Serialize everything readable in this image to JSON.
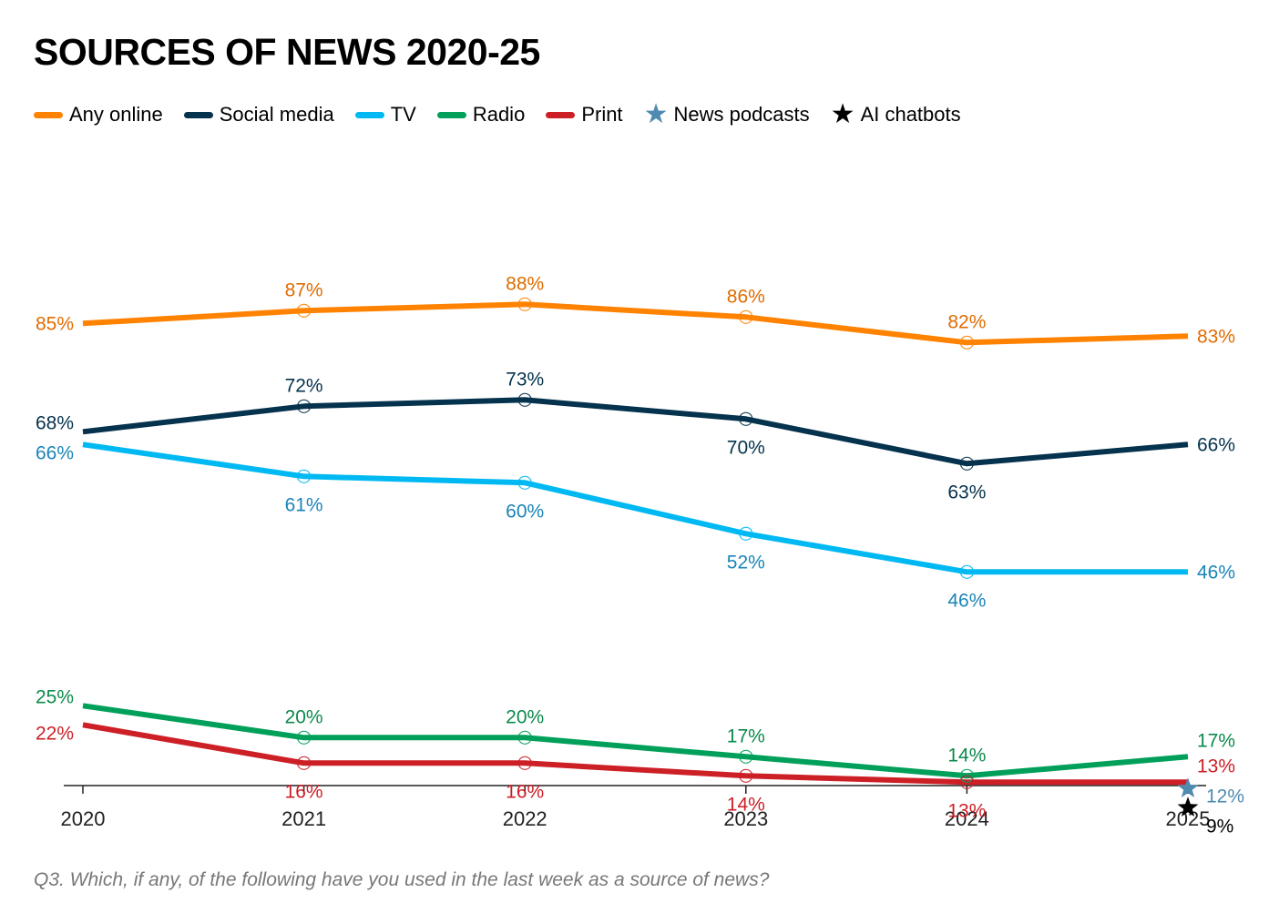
{
  "chart_data": {
    "type": "line",
    "title": "SOURCES OF NEWS 2020-25",
    "x": [
      "2020",
      "2021",
      "2022",
      "2023",
      "2024",
      "2025"
    ],
    "ylim": [
      0,
      100
    ],
    "grid": false,
    "legend_position": "top-left",
    "series": [
      {
        "name": "Any online",
        "key": "any_online",
        "color": "#ff8200",
        "label_color": "#e06c00",
        "values": [
          85,
          87,
          88,
          86,
          82,
          83
        ],
        "labels": [
          "85%",
          "87%",
          "88%",
          "86%",
          "82%",
          "83%"
        ]
      },
      {
        "name": "Social media",
        "key": "social_media",
        "color": "#05324d",
        "label_color": "#05324d",
        "values": [
          68,
          72,
          73,
          70,
          63,
          66
        ],
        "labels": [
          "68%",
          "72%",
          "73%",
          "70%",
          "63%",
          "66%"
        ]
      },
      {
        "name": "TV",
        "key": "tv",
        "color": "#00b9f2",
        "label_color": "#1b84b8",
        "values": [
          66,
          61,
          60,
          52,
          46,
          46
        ],
        "labels": [
          "66%",
          "61%",
          "60%",
          "52%",
          "46%",
          "46%"
        ]
      },
      {
        "name": "Radio",
        "key": "radio",
        "color": "#00a05a",
        "label_color": "#0b8a4b",
        "values": [
          25,
          20,
          20,
          17,
          14,
          17
        ],
        "labels": [
          "25%",
          "20%",
          "20%",
          "17%",
          "14%",
          "17%"
        ]
      },
      {
        "name": "Print",
        "key": "print",
        "color": "#cc1f26",
        "label_color": "#cc1f26",
        "values": [
          22,
          16,
          16,
          14,
          13,
          13
        ],
        "labels": [
          "22%",
          "16%",
          "16%",
          "14%",
          "13%",
          "13%"
        ]
      }
    ],
    "point_series": [
      {
        "name": "News podcasts",
        "key": "news_podcasts",
        "color": "#4f8bb0",
        "label_color": "#4f8bb0",
        "x": "2025",
        "value": 12,
        "label": "12%"
      },
      {
        "name": "AI chatbots",
        "key": "ai_chatbots",
        "color": "#000000",
        "label_color": "#000000",
        "x": "2025",
        "value": 9,
        "label": "9%"
      }
    ]
  },
  "legend": {
    "items": [
      {
        "label": "Any online",
        "marker": "line",
        "color": "#ff8200"
      },
      {
        "label": "Social media",
        "marker": "line",
        "color": "#05324d"
      },
      {
        "label": "TV",
        "marker": "line",
        "color": "#00b9f2"
      },
      {
        "label": "Radio",
        "marker": "line",
        "color": "#00a05a"
      },
      {
        "label": "Print",
        "marker": "line",
        "color": "#cc1f26"
      },
      {
        "label": "News podcasts",
        "marker": "star",
        "color": "#4f8bb0"
      },
      {
        "label": "AI chatbots",
        "marker": "star",
        "color": "#000000"
      }
    ]
  },
  "note": "Q3. Which, if any, of the following have you used in the last week as a source of news?"
}
